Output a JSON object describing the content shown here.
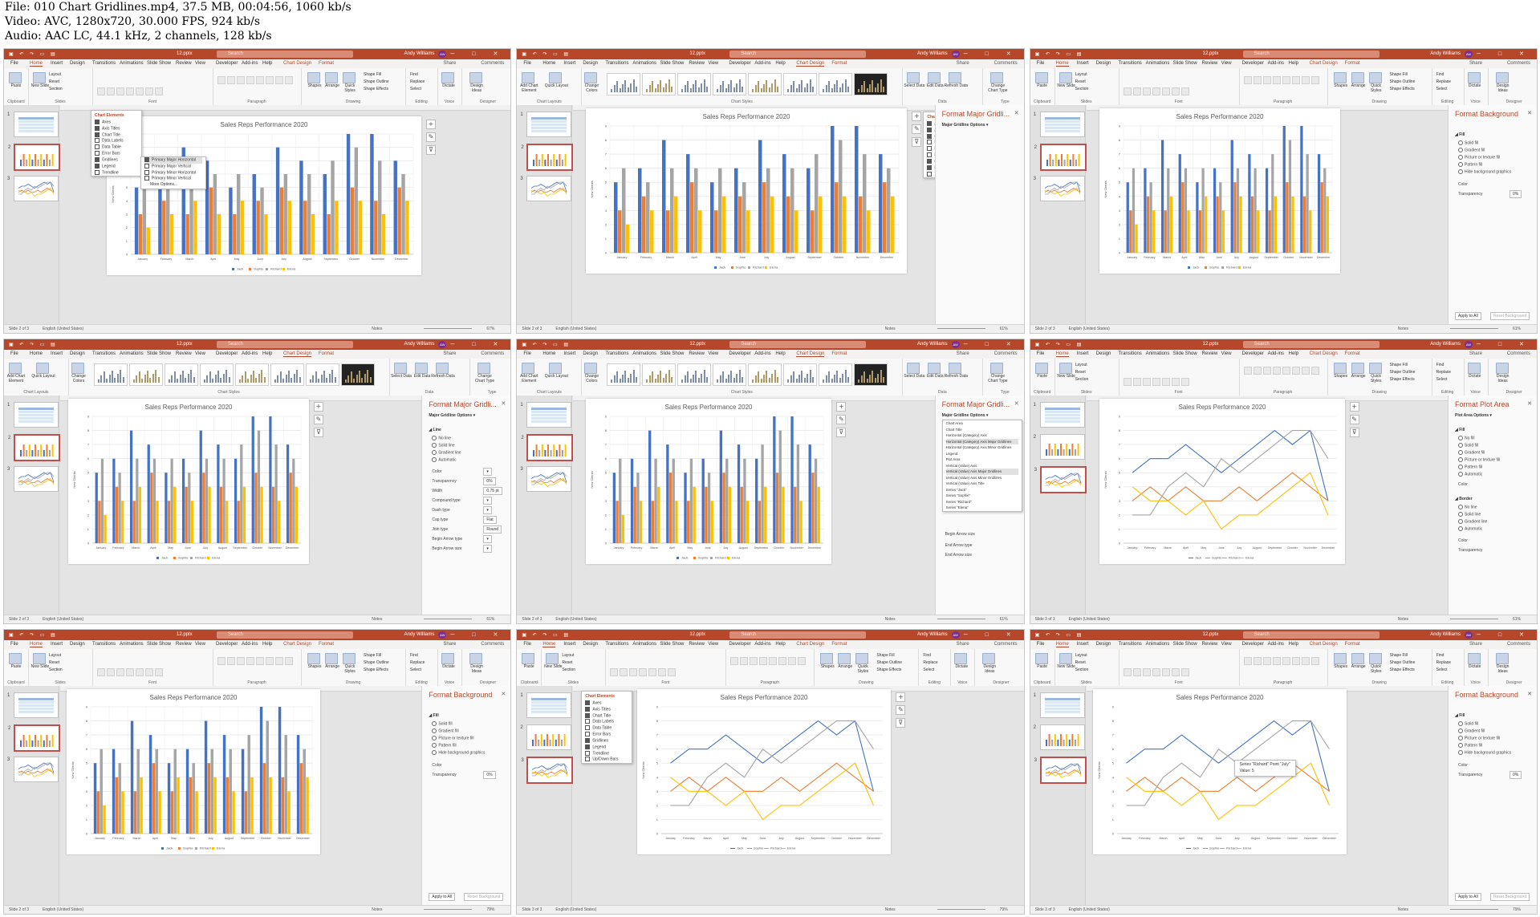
{
  "header": {
    "line1": "File: 010 Chart Gridlines.mp4, 37.5 MB, 00:04:56, 1060 kb/s",
    "line2": "Video: AVC, 1280x720, 30.000 FPS, 924 kb/s",
    "line3": "Audio: AAC LC, 44.1 kHz, 2 channels, 128 kb/s"
  },
  "app": {
    "file_name": "12.pptx",
    "search": "Search",
    "user": "Andy Williams",
    "user_initials": "AW",
    "share": "Share",
    "comments": "Comments",
    "status_left": "Slide 2 of 3",
    "status_left_3": "Slide 3 of 3",
    "status_lang": "English (United States)",
    "notes": "Notes",
    "zoom_values": [
      "67%",
      "61%",
      "61%",
      "61%",
      "61%",
      "61%",
      "79%",
      "79%",
      "79%"
    ]
  },
  "tabs_home": [
    "File",
    "Home",
    "Insert",
    "Design",
    "Transitions",
    "Animations",
    "Slide Show",
    "Review",
    "View",
    "Developer",
    "Add-ins",
    "Help",
    "Chart Design",
    "Format"
  ],
  "ribbon_home_groups": [
    "Clipboard",
    "Slides",
    "Font",
    "Paragraph",
    "Drawing",
    "Editing",
    "Voice",
    "Designer"
  ],
  "ribbon_design_groups": [
    "Chart Layouts",
    "Chart Styles",
    "Data",
    "Type"
  ],
  "ribbon_home_buttons": {
    "paste": "Paste",
    "new_slide": "New Slide",
    "layout": "Layout",
    "reset": "Reset",
    "section": "Section",
    "shapes": "Shapes",
    "arrange": "Arrange",
    "quick_styles": "Quick Styles",
    "shape_fill": "Shape Fill",
    "shape_outline": "Shape Outline",
    "shape_effects": "Shape Effects",
    "find": "Find",
    "replace": "Replace",
    "select": "Select",
    "dictate": "Dictate",
    "design_ideas": "Design Ideas"
  },
  "ribbon_design_buttons": {
    "add_chart_element": "Add Chart Element",
    "quick_layout": "Quick Layout",
    "change_colors": "Change Colors",
    "switch_row_col": "Switch Row/Column",
    "select_data": "Select Data",
    "edit_data": "Edit Data",
    "refresh_data": "Refresh Data",
    "change_chart_type": "Change Chart Type"
  },
  "chart": {
    "title": "Sales Reps Performance 2020",
    "ylabel": "New Clients",
    "months": [
      "January",
      "February",
      "March",
      "April",
      "May",
      "June",
      "July",
      "August",
      "September",
      "October",
      "November",
      "December"
    ],
    "series": [
      {
        "name": "Jack",
        "color": "#4472c4"
      },
      {
        "name": "Sophie",
        "color": "#ed7d31"
      },
      {
        "name": "Richard",
        "color": "#a5a5a5"
      },
      {
        "name": "Elena",
        "color": "#ffc000"
      }
    ]
  },
  "chart_elements": {
    "title": "Chart Elements",
    "items": [
      "Axes",
      "Axis Titles",
      "Chart Title",
      "Data Labels",
      "Data Table",
      "Error Bars",
      "Gridlines",
      "Legend",
      "Trendline"
    ],
    "items_line": [
      "Axes",
      "Axis Titles",
      "Chart Title",
      "Data Labels",
      "Data Table",
      "Error Bars",
      "Gridlines",
      "Legend",
      "Trendline",
      "Up/Down Bars"
    ],
    "gridline_options": [
      "Primary Major Horizontal",
      "Primary Major Vertical",
      "Primary Minor Horizontal",
      "Primary Minor Vertical",
      "More Options..."
    ]
  },
  "panels": {
    "format_major_gridlines": "Format Major Gridli...",
    "major_gridline_options": "Major Gridline Options",
    "line": "Line",
    "no_line": "No line",
    "solid_line": "Solid line",
    "gradient_line": "Gradient line",
    "automatic": "Automatic",
    "color": "Color",
    "transparency": "Transparency",
    "width": "Width",
    "width_value": "0.75 pt",
    "compound_type": "Compound type",
    "dash_type": "Dash type",
    "cap_type": "Cap type",
    "cap_value": "Flat",
    "join_type": "Join type",
    "join_value": "Round",
    "begin_arrow_type": "Begin Arrow type",
    "begin_arrow_size": "Begin Arrow size",
    "end_arrow_type": "End Arrow type",
    "end_arrow_size": "End Arrow size",
    "transparency_value": "0%",
    "format_background": "Format Background",
    "fill": "Fill",
    "solid_fill": "Solid fill",
    "gradient_fill": "Gradient fill",
    "picture_fill": "Picture or texture fill",
    "pattern_fill": "Pattern fill",
    "hide_bg": "Hide background graphics",
    "apply_to_all": "Apply to All",
    "reset_background": "Reset Background",
    "format_plot_area": "Format Plot Area",
    "plot_area_options": "Plot Area Options",
    "no_fill": "No fill",
    "border": "Border",
    "element_dropdown": [
      "Chart Area",
      "Chart Title",
      "Horizontal (Category) Axis",
      "Horizontal (Category) Axis Major Gridlines",
      "Horizontal (Category) Axis Minor Gridlines",
      "Legend",
      "Plot Area",
      "Vertical (Value) Axis",
      "Vertical (Value) Axis Major Gridlines",
      "Vertical (Value) Axis Minor Gridlines",
      "Vertical (Value) Axis Title",
      "Series \"Jack\"",
      "Series \"Sophie\"",
      "Series \"Richard\"",
      "Series \"Elena\""
    ]
  },
  "tooltip": {
    "line1": "Series \"Richard\" Point \"July\"",
    "line2": "Value: 5"
  },
  "chart_data": [
    {
      "type": "bar",
      "title": "Sales Reps Performance 2020",
      "xlabel": "",
      "ylabel": "New Clients",
      "ylim": [
        0,
        9
      ],
      "categories": [
        "January",
        "February",
        "March",
        "April",
        "May",
        "June",
        "July",
        "August",
        "September",
        "October",
        "November",
        "December"
      ],
      "series": [
        {
          "name": "Jack",
          "values": [
            5,
            6,
            8,
            7,
            5,
            6,
            8,
            7,
            6,
            9,
            9,
            7
          ]
        },
        {
          "name": "Sophie",
          "values": [
            3,
            4,
            3,
            5,
            3,
            4,
            5,
            4,
            3,
            5,
            4,
            5
          ]
        },
        {
          "name": "Richard",
          "values": [
            6,
            5,
            6,
            6,
            6,
            5,
            6,
            6,
            7,
            8,
            7,
            6
          ]
        },
        {
          "name": "Elena",
          "values": [
            2,
            3,
            4,
            3,
            4,
            3,
            4,
            3,
            4,
            4,
            3,
            4
          ]
        }
      ],
      "legend": "bottom"
    },
    {
      "type": "line",
      "title": "Sales Reps Performance 2020",
      "xlabel": "",
      "ylabel": "New Clients",
      "ylim": [
        0,
        9
      ],
      "categories": [
        "January",
        "February",
        "March",
        "April",
        "May",
        "June",
        "July",
        "August",
        "September",
        "October",
        "November",
        "December"
      ],
      "series": [
        {
          "name": "Jack",
          "values": [
            5,
            6,
            6,
            7,
            6,
            5,
            6,
            7,
            8,
            7,
            8,
            3
          ]
        },
        {
          "name": "Sophie",
          "values": [
            3,
            4,
            3,
            4,
            3,
            3,
            4,
            3,
            4,
            5,
            4,
            3
          ]
        },
        {
          "name": "Richard",
          "values": [
            2,
            2,
            4,
            5,
            4,
            6,
            5,
            6,
            7,
            8,
            8,
            6
          ]
        },
        {
          "name": "Elena",
          "values": [
            4,
            3,
            3,
            2,
            3,
            1,
            2,
            2,
            3,
            4,
            5,
            2
          ]
        }
      ],
      "legend": "bottom"
    }
  ]
}
